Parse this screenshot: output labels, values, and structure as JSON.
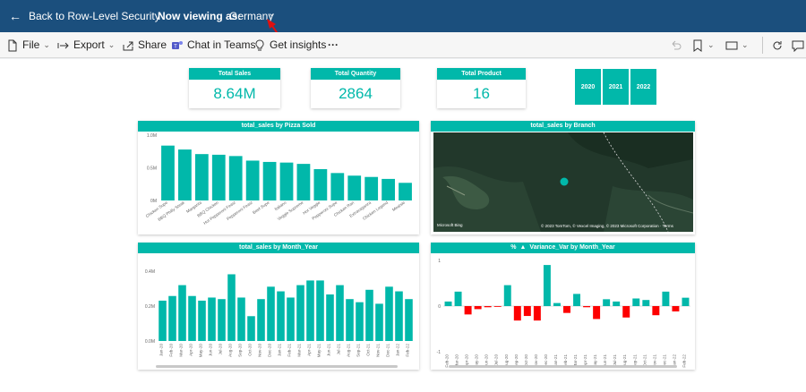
{
  "topbar": {
    "back_label": "Back to Row-Level Security",
    "viewing_label": "Now viewing as:",
    "viewing_value": "Germany"
  },
  "toolbar": {
    "file": "File",
    "export": "Export",
    "share": "Share",
    "chat": "Chat in Teams",
    "insights": "Get insights",
    "more": "···"
  },
  "cards": [
    {
      "title": "Total Sales",
      "value": "8.64M"
    },
    {
      "title": "Total Quantity",
      "value": "2864"
    },
    {
      "title": "Total Product",
      "value": "16"
    }
  ],
  "year_slicer": [
    "2020",
    "2021",
    "2022"
  ],
  "colors": {
    "accent": "#01b8aa",
    "topbar": "#1b4f7d",
    "negative": "#fd0000"
  },
  "chart_data": [
    {
      "type": "bar",
      "title": "total_sales by Pizza Sold",
      "categories": [
        "Chicken Supe",
        "BBQ Philly Steak",
        "Margarita",
        "BBQ Chicken",
        "Hot Pepperoni Feast",
        "Pepperoni Feast",
        "Beef Supe",
        "Italiano",
        "Veggie Supreme",
        "Hot Veggie",
        "Pepperoni Supe",
        "Chicken Ran",
        "Extravaganza",
        "Chicken Legend",
        "Meatsie"
      ],
      "values": [
        0.84,
        0.78,
        0.71,
        0.7,
        0.68,
        0.61,
        0.59,
        0.58,
        0.56,
        0.48,
        0.42,
        0.38,
        0.36,
        0.33,
        0.27
      ],
      "ylim": [
        0,
        1
      ],
      "yticks": [
        "0M",
        "0.5M",
        "1.0M"
      ]
    },
    {
      "type": "bar",
      "title": "total_sales by Month_Year",
      "categories": [
        "Jan-20",
        "Feb-20",
        "Mar-20",
        "Apr-20",
        "May-20",
        "Jun-20",
        "Jul-20",
        "Aug-20",
        "Sep-20",
        "Oct-20",
        "Nov-20",
        "Dec-20",
        "Jan-21",
        "Feb-21",
        "Mar-21",
        "Apr-21",
        "May-21",
        "Jun-21",
        "Jul-21",
        "Aug-21",
        "Sep-21",
        "Oct-21",
        "Nov-21",
        "Dec-21",
        "Jan-22",
        "Feb-22"
      ],
      "values": [
        0.26,
        0.29,
        0.36,
        0.29,
        0.26,
        0.28,
        0.27,
        0.43,
        0.28,
        0.16,
        0.27,
        0.35,
        0.32,
        0.28,
        0.36,
        0.39,
        0.39,
        0.3,
        0.36,
        0.27,
        0.25,
        0.33,
        0.24,
        0.35,
        0.32,
        0.27
      ],
      "ylim": [
        0,
        0.45
      ],
      "yticks": [
        "0.0M",
        "0.2M",
        "0.4M"
      ]
    },
    {
      "type": "bar",
      "title": "Variance_Var by Month_Year",
      "title_prefix": "%",
      "categories": [
        "Feb-20",
        "Mar-20",
        "Apr-20",
        "May-20",
        "Jun-20",
        "Jul-20",
        "Aug-20",
        "Sep-20",
        "Oct-20",
        "Nov-20",
        "Dec-20",
        "Jan-21",
        "Feb-21",
        "Mar-21",
        "Apr-21",
        "May-21",
        "Jun-21",
        "Jul-21",
        "Aug-21",
        "Sep-21",
        "Oct-21",
        "Nov-21",
        "Dec-21",
        "Jan-22",
        "Feb-22"
      ],
      "values": [
        0.12,
        0.38,
        -0.22,
        -0.08,
        -0.03,
        -0.02,
        0.55,
        -0.38,
        -0.26,
        -0.38,
        1.08,
        0.08,
        -0.18,
        0.32,
        -0.03,
        -0.34,
        0.18,
        0.12,
        -0.3,
        0.2,
        0.16,
        -0.24,
        0.38,
        -0.14,
        0.22
      ],
      "ylim": [
        -1.2,
        1.2
      ],
      "yticks": [
        "-1",
        "0",
        "1"
      ]
    }
  ],
  "map": {
    "title": "total_sales by Branch",
    "logo": "Microsoft Bing",
    "credit": "© 2023 TomTom, © Vexcel Imaging, © 2023 Microsoft Corporation · Terms"
  }
}
